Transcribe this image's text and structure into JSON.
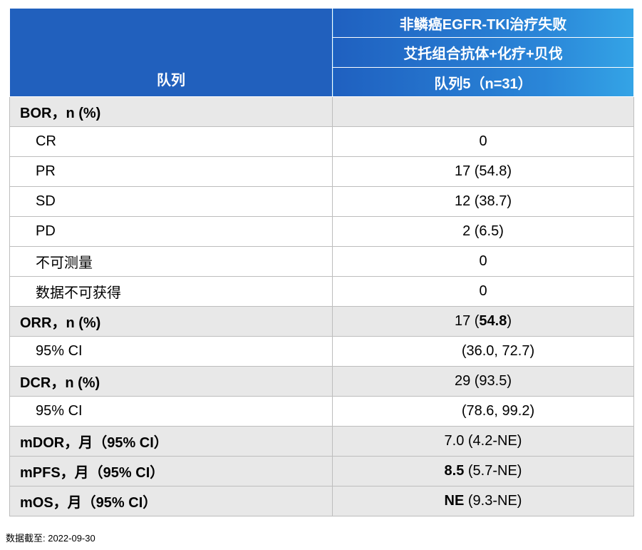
{
  "header": {
    "row_label": "队列",
    "group": "非鳞癌EGFR-TKI治疗失败",
    "regimen": "艾托组合抗体+化疗+贝伐",
    "cohort": "队列5（n=31）"
  },
  "rows": [
    {
      "label": "BOR，n (%)",
      "value": ""
    },
    {
      "label": "CR",
      "value": "0"
    },
    {
      "label": "PR",
      "value": "17 (54.8)"
    },
    {
      "label": "SD",
      "value": "12 (38.7)"
    },
    {
      "label": "PD",
      "value": "2 (6.5)"
    },
    {
      "label": "不可测量",
      "value": "0"
    },
    {
      "label": "数据不可获得",
      "value": "0"
    },
    {
      "label": "ORR，n (%)",
      "value_pre": "17 (",
      "value_bold": "54.8",
      "value_post": ")"
    },
    {
      "label": "95% CI",
      "value": "(36.0, 72.7)"
    },
    {
      "label": "DCR，n (%)",
      "value": "29 (93.5)"
    },
    {
      "label": "95% CI",
      "value": "(78.6, 99.2)"
    },
    {
      "label": "mDOR，月（95% CI）",
      "value": "7.0 (4.2-NE)"
    },
    {
      "label": "mPFS，月（95% CI）",
      "value_bold": "8.5",
      "value_post": " (5.7-NE)"
    },
    {
      "label": "mOS，月（95% CI）",
      "value_bold": "NE",
      "value_post": " (9.3-NE)"
    }
  ],
  "footnote": "数据截至: 2022-09-30"
}
